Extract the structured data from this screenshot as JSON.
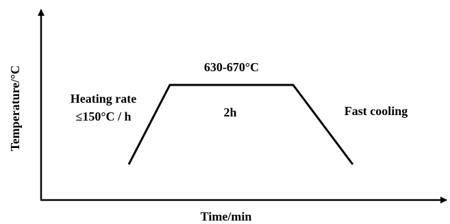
{
  "axes": {
    "y_label": "Temperature/°C",
    "x_label": "Time/min"
  },
  "annotations": {
    "hold_temperature": "630-670°C",
    "hold_time": "2h",
    "heating_line1": "Heating rate",
    "heating_line2": "≤150°C / h",
    "cooling": "Fast cooling"
  },
  "colors": {
    "line": "#000000",
    "text": "#000000"
  }
}
